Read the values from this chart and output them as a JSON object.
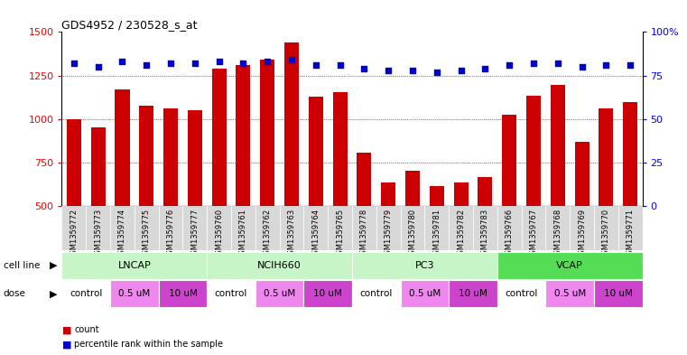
{
  "title": "GDS4952 / 230528_s_at",
  "samples": [
    "GSM1359772",
    "GSM1359773",
    "GSM1359774",
    "GSM1359775",
    "GSM1359776",
    "GSM1359777",
    "GSM1359760",
    "GSM1359761",
    "GSM1359762",
    "GSM1359763",
    "GSM1359764",
    "GSM1359765",
    "GSM1359778",
    "GSM1359779",
    "GSM1359780",
    "GSM1359781",
    "GSM1359782",
    "GSM1359783",
    "GSM1359766",
    "GSM1359767",
    "GSM1359768",
    "GSM1359769",
    "GSM1359770",
    "GSM1359771"
  ],
  "counts": [
    1000,
    950,
    1170,
    1075,
    1060,
    1050,
    1290,
    1310,
    1340,
    1440,
    1130,
    1155,
    805,
    635,
    700,
    615,
    635,
    665,
    1025,
    1135,
    1195,
    870,
    1060,
    1095
  ],
  "percentile_ranks": [
    82,
    80,
    83,
    81,
    82,
    82,
    83,
    82,
    83,
    84,
    81,
    81,
    79,
    78,
    78,
    77,
    78,
    79,
    81,
    82,
    82,
    80,
    81,
    81
  ],
  "bar_color": "#cc0000",
  "dot_color": "#0000cc",
  "ylim_left": [
    500,
    1500
  ],
  "ylim_right": [
    0,
    100
  ],
  "yticks_left": [
    500,
    750,
    1000,
    1250,
    1500
  ],
  "yticks_right": [
    0,
    25,
    50,
    75,
    100
  ],
  "grid_values": [
    750,
    1000,
    1250
  ],
  "cell_groups": [
    {
      "name": "LNCAP",
      "start": 0,
      "end": 6,
      "color": "#c8f5c8"
    },
    {
      "name": "NCIH660",
      "start": 6,
      "end": 12,
      "color": "#c8f5c8"
    },
    {
      "name": "PC3",
      "start": 12,
      "end": 18,
      "color": "#c8f5c8"
    },
    {
      "name": "VCAP",
      "start": 18,
      "end": 24,
      "color": "#55dd55"
    }
  ],
  "dose_groups": [
    {
      "label": "control",
      "start": 0,
      "end": 2,
      "color": "#ffffff"
    },
    {
      "label": "0.5 uM",
      "start": 2,
      "end": 4,
      "color": "#ee88ee"
    },
    {
      "label": "10 uM",
      "start": 4,
      "end": 6,
      "color": "#cc44cc"
    },
    {
      "label": "control",
      "start": 6,
      "end": 8,
      "color": "#ffffff"
    },
    {
      "label": "0.5 uM",
      "start": 8,
      "end": 10,
      "color": "#ee88ee"
    },
    {
      "label": "10 uM",
      "start": 10,
      "end": 12,
      "color": "#cc44cc"
    },
    {
      "label": "control",
      "start": 12,
      "end": 14,
      "color": "#ffffff"
    },
    {
      "label": "0.5 uM",
      "start": 14,
      "end": 16,
      "color": "#ee88ee"
    },
    {
      "label": "10 uM",
      "start": 16,
      "end": 18,
      "color": "#cc44cc"
    },
    {
      "label": "control",
      "start": 18,
      "end": 20,
      "color": "#ffffff"
    },
    {
      "label": "0.5 uM",
      "start": 20,
      "end": 22,
      "color": "#ee88ee"
    },
    {
      "label": "10 uM",
      "start": 22,
      "end": 24,
      "color": "#cc44cc"
    }
  ],
  "bg_color": "#ffffff",
  "plot_bg": "#ffffff",
  "xtick_bg": "#d8d8d8",
  "legend_count_color": "#cc0000",
  "legend_dot_color": "#0000cc"
}
